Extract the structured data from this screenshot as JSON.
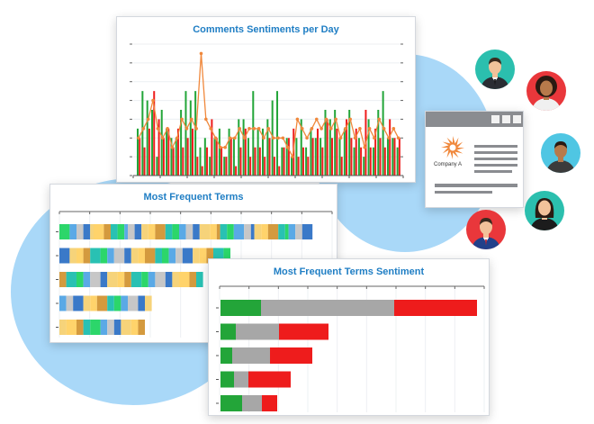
{
  "colors": {
    "blob": "#a9d8f8",
    "title": "#1f7ec4",
    "green": "#23a539",
    "red": "#ee1c1c",
    "orange": "#f0883c",
    "grey": "#a7a7a7",
    "browser_bar": "#8a8c90",
    "logo": "#f0883c"
  },
  "chart_data": [
    {
      "type": "bar",
      "title": "Comments Sentiments per Day",
      "series": [
        {
          "color": "#23a539",
          "values": [
            5,
            9,
            8,
            7,
            2,
            7,
            5,
            4,
            4,
            7,
            9,
            8,
            9,
            3,
            4,
            2,
            4,
            5,
            2,
            5,
            4,
            6,
            6,
            4,
            9,
            5,
            5,
            6,
            8,
            9,
            3,
            4,
            2,
            4,
            6,
            3,
            5,
            4,
            4,
            7,
            6,
            7,
            4,
            5,
            7,
            3,
            4,
            2,
            6,
            3,
            7,
            9,
            4,
            4,
            3
          ]
        },
        {
          "color": "#ee1c1c",
          "values": [
            4,
            3,
            5,
            9,
            6,
            4,
            5,
            3,
            5,
            3,
            4,
            5,
            2,
            1,
            3,
            6,
            4,
            3,
            2,
            4,
            1,
            3,
            5,
            2,
            3,
            3,
            2,
            4,
            2,
            1,
            3,
            4,
            5,
            2,
            3,
            2,
            4,
            5,
            3,
            6,
            4,
            5,
            2,
            6,
            4,
            5,
            3,
            7,
            3,
            5,
            4,
            3,
            6,
            4,
            4
          ]
        },
        {
          "color": "#f0883c",
          "values": [
            4,
            5,
            6,
            8,
            5,
            4,
            5,
            3,
            4,
            6,
            5,
            6,
            5,
            13,
            6,
            5,
            4,
            3,
            3,
            4,
            4,
            5,
            4,
            5,
            5,
            5,
            4,
            5,
            4,
            4,
            4,
            3,
            2,
            6,
            5,
            4,
            5,
            6,
            5,
            6,
            5,
            6,
            4,
            5,
            6,
            4,
            5,
            3,
            5,
            4,
            6,
            5,
            4,
            5,
            4
          ]
        }
      ]
    },
    {
      "type": "bar",
      "title": "Most Frequent Terms",
      "rows": [
        {
          "segments": [
            3,
            2,
            2,
            2,
            1,
            3,
            2,
            2,
            2,
            1,
            2,
            2,
            2,
            2,
            3,
            2,
            2,
            2,
            2,
            2,
            3,
            2,
            1,
            2,
            2,
            3,
            2,
            1,
            2,
            2,
            3,
            2,
            1,
            2,
            2,
            3
          ]
        },
        {
          "segments": [
            3,
            2,
            2,
            2,
            3,
            2,
            2,
            3,
            2,
            2,
            2,
            3,
            2,
            2,
            2,
            2,
            3,
            2,
            2,
            2,
            3,
            2
          ]
        },
        {
          "segments": [
            2,
            3,
            2,
            2,
            3,
            2,
            3,
            2,
            2,
            3,
            2,
            2,
            3,
            2,
            2,
            3,
            2,
            2
          ]
        },
        {
          "segments": [
            2,
            2,
            3,
            2,
            2,
            3,
            2,
            2,
            2,
            3,
            2,
            2
          ]
        },
        {
          "segments": [
            2,
            3,
            2,
            2,
            3,
            2,
            2,
            2,
            3,
            2,
            2
          ]
        }
      ]
    },
    {
      "type": "bar",
      "title": "Most Frequent Terms Sentiment",
      "rows": [
        {
          "positive": 45,
          "neutral": 148,
          "negative": 92
        },
        {
          "positive": 17,
          "neutral": 48,
          "negative": 55
        },
        {
          "positive": 13,
          "neutral": 42,
          "negative": 47
        },
        {
          "positive": 15,
          "neutral": 16,
          "negative": 47
        },
        {
          "positive": 24,
          "neutral": 22,
          "negative": 17
        }
      ]
    }
  ],
  "term_palette": [
    "#2cd66a",
    "#3a79c8",
    "#d49a3e",
    "#5aa9e6",
    "#f6d37a",
    "#29c1b3",
    "#c7c7c7",
    "#ffd36b"
  ],
  "company": {
    "label": "Company A"
  },
  "avatars": [
    {
      "icon": "businessman-icon",
      "bg": "#2bbfae",
      "skin": "#f2c29a",
      "hair": "#3a2a1e",
      "shirt": "#2a2d33"
    },
    {
      "icon": "woman-curly-icon",
      "bg": "#e9373b",
      "skin": "#b77a4b",
      "hair": "#2b1a12",
      "shirt": "#f0f0f0"
    },
    {
      "icon": "man-icon",
      "bg": "#4fc6e3",
      "skin": "#b77a4b",
      "hair": "#2b1a12",
      "shirt": "#3b3b3b"
    },
    {
      "icon": "woman-icon",
      "bg": "#2bbfae",
      "skin": "#f2c29a",
      "hair": "#2b1a12",
      "shirt": "#1c1c1c"
    },
    {
      "icon": "businessman-red-icon",
      "bg": "#e9373b",
      "skin": "#f2c29a",
      "hair": "#3a2a1e",
      "shirt": "#22408a"
    }
  ]
}
